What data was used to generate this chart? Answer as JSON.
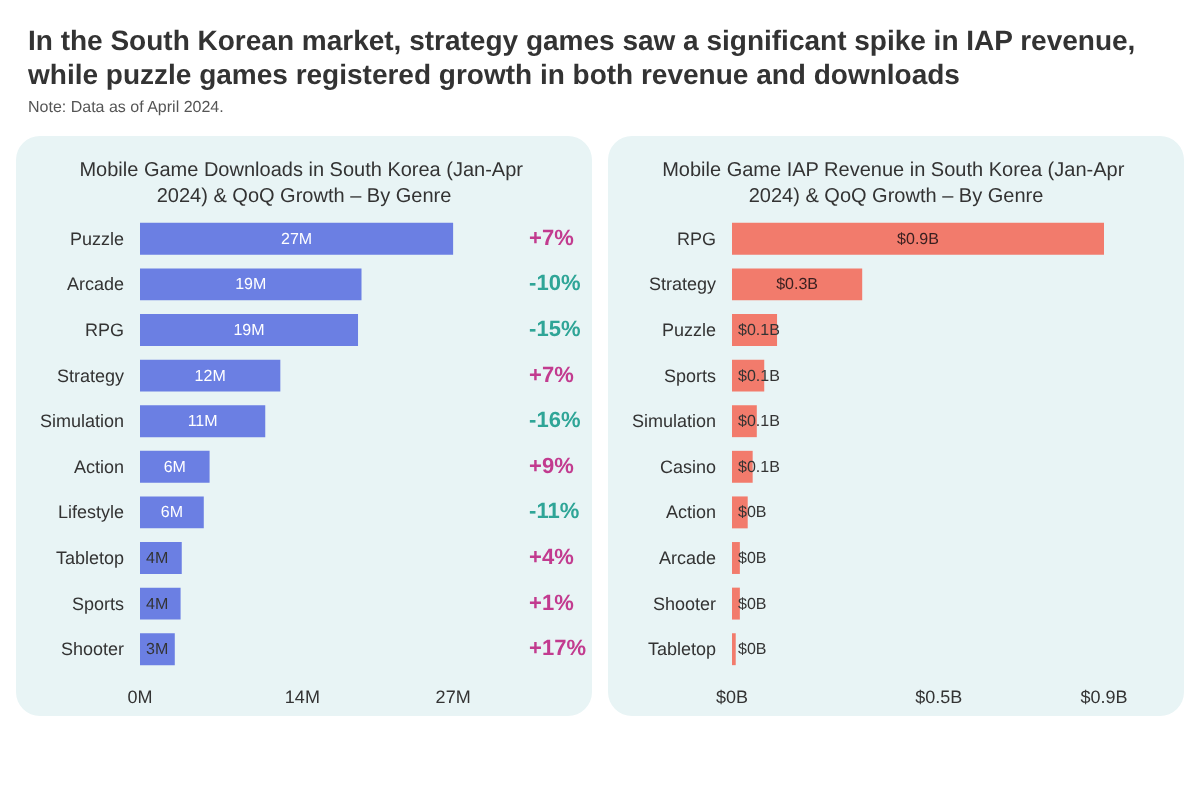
{
  "chart_data": [
    {
      "type": "other",
      "title": "In the South Korean market, strategy games saw a significant spike in IAP revenue, while puzzle games registered growth in both revenue and downloads",
      "annotations": [
        "Note: Data as of April 2024."
      ]
    },
    {
      "type": "bar",
      "orientation": "horizontal",
      "title": "Mobile Game Downloads in South Korea (Jan-Apr 2024) & QoQ Growth – By Genre",
      "categories": [
        "Puzzle",
        "Arcade",
        "RPG",
        "Strategy",
        "Simulation",
        "Action",
        "Lifestyle",
        "Tabletop",
        "Sports",
        "Shooter"
      ],
      "values": [
        27,
        19.1,
        18.8,
        12.1,
        10.8,
        6,
        5.5,
        3.6,
        3.5,
        3
      ],
      "value_labels": [
        "27M",
        "19M",
        "19M",
        "12M",
        "11M",
        "6M",
        "6M",
        "4M",
        "4M",
        "3M"
      ],
      "color": "#6b7fe3",
      "xlim": [
        0,
        27
      ],
      "xticks": [
        {
          "value": 0,
          "label": "0M"
        },
        {
          "value": 14,
          "label": "14M"
        },
        {
          "value": 27,
          "label": "27M"
        }
      ],
      "annotations": [
        "+7%",
        "-10%",
        "-15%",
        "+7%",
        "-16%",
        "+9%",
        "-11%",
        "+4%",
        "+1%",
        "+17%"
      ]
    },
    {
      "type": "bar",
      "orientation": "horizontal",
      "title": "Mobile Game IAP Revenue in South Korea (Jan-Apr 2024) & QoQ Growth – By Genre",
      "categories": [
        "RPG",
        "Strategy",
        "Puzzle",
        "Sports",
        "Simulation",
        "Casino",
        "Action",
        "Arcade",
        "Shooter",
        "Tabletop"
      ],
      "values": [
        0.9,
        0.315,
        0.109,
        0.078,
        0.06,
        0.05,
        0.038,
        0.019,
        0.019,
        0.009
      ],
      "value_labels": [
        "$0.9B",
        "$0.3B",
        "$0.1B",
        "$0.1B",
        "$0.1B",
        "$0.1B",
        "$0B",
        "$0B",
        "$0B",
        "$0B"
      ],
      "color": "#f27b6c",
      "xlim": [
        0,
        0.9
      ],
      "xticks": [
        {
          "value": 0,
          "label": "$0B"
        },
        {
          "value": 0.5,
          "label": "$0.5B"
        },
        {
          "value": 0.9,
          "label": "$0.9B"
        }
      ]
    }
  ]
}
